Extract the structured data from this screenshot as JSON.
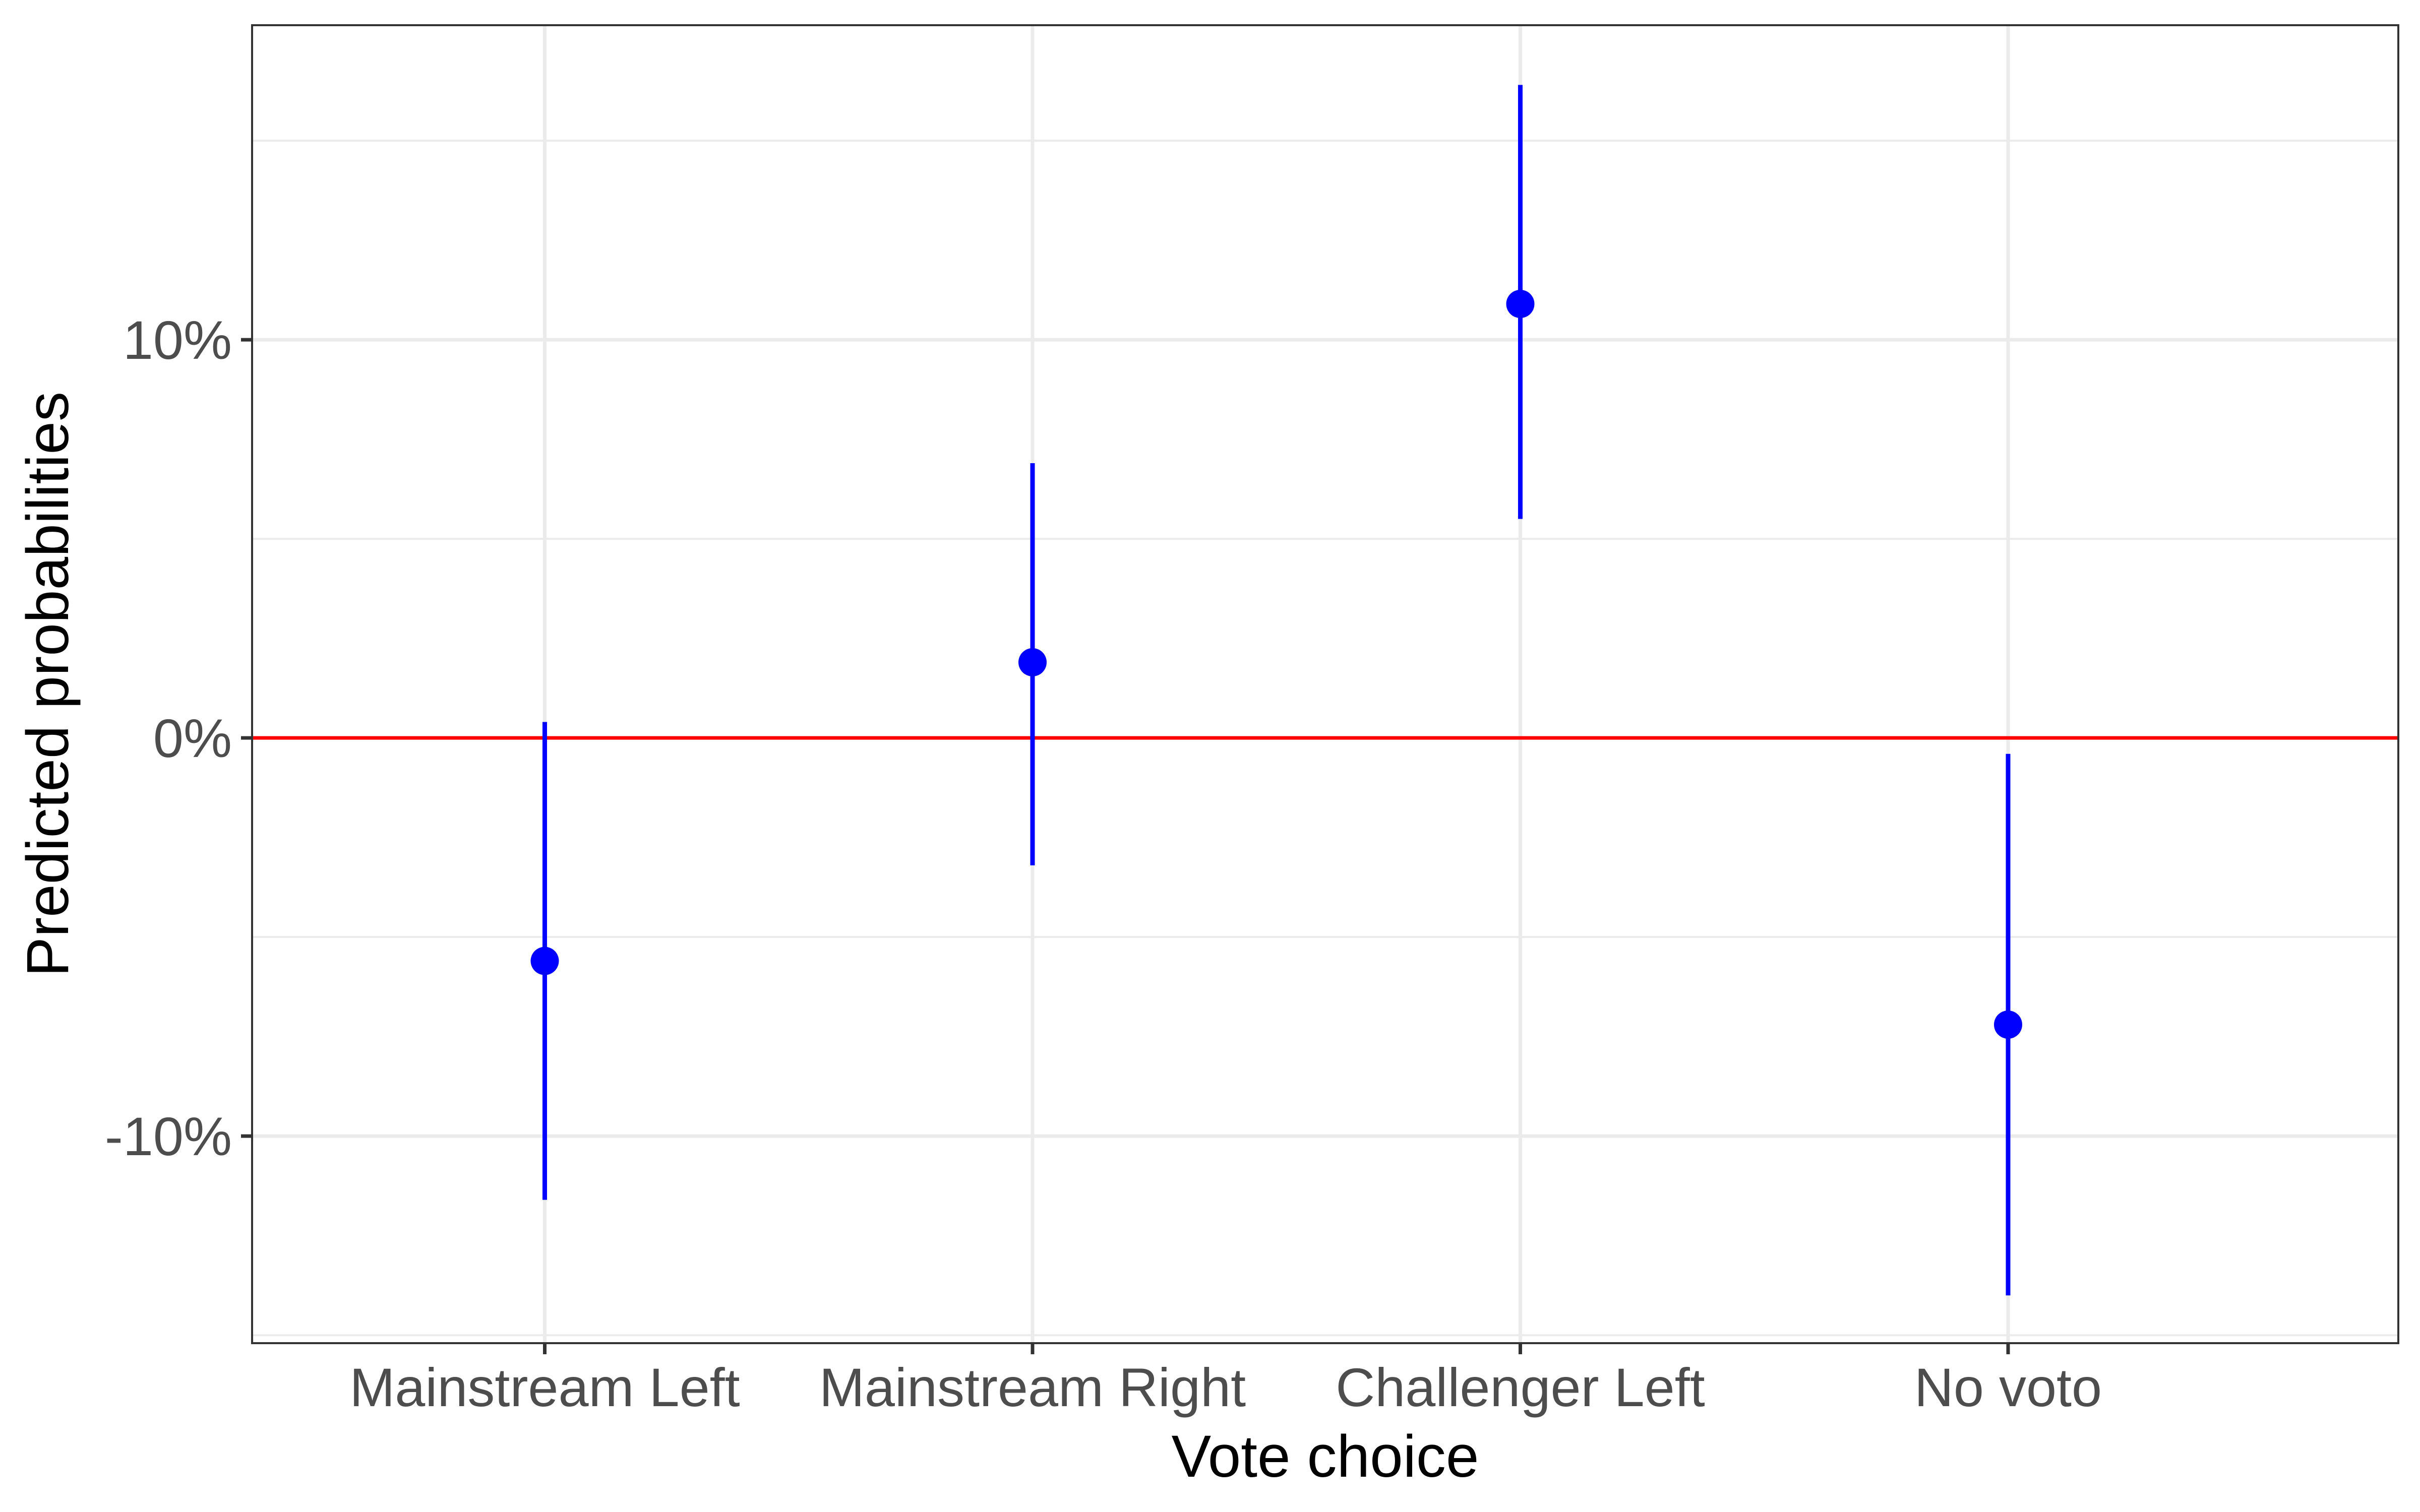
{
  "chart_data": {
    "type": "scatter",
    "subtype": "point-range",
    "title": "",
    "xlabel": "Vote choice",
    "ylabel": "Predicted probabilities",
    "categories": [
      "Mainstream Left",
      "Mainstream Right",
      "Challenger Left",
      "No voto"
    ],
    "estimates": [
      -5.6,
      1.9,
      10.9,
      -7.2
    ],
    "lower": [
      -11.6,
      -3.2,
      5.5,
      -14.0
    ],
    "upper": [
      0.4,
      6.9,
      16.4,
      -0.4
    ],
    "y_ticks": [
      -10,
      0,
      10
    ],
    "y_tick_labels": [
      "-10%",
      "0%",
      "10%"
    ],
    "y_minor_ticks": [
      -15,
      -5,
      5,
      15
    ],
    "ylim": [
      -15.2,
      17.9
    ],
    "reference_line": 0,
    "grid": true,
    "legend": "none",
    "colors": {
      "points": "#0000ff",
      "reference_line": "#ff0000",
      "grid": "#ebebeb",
      "panel_border": "#333333"
    }
  }
}
